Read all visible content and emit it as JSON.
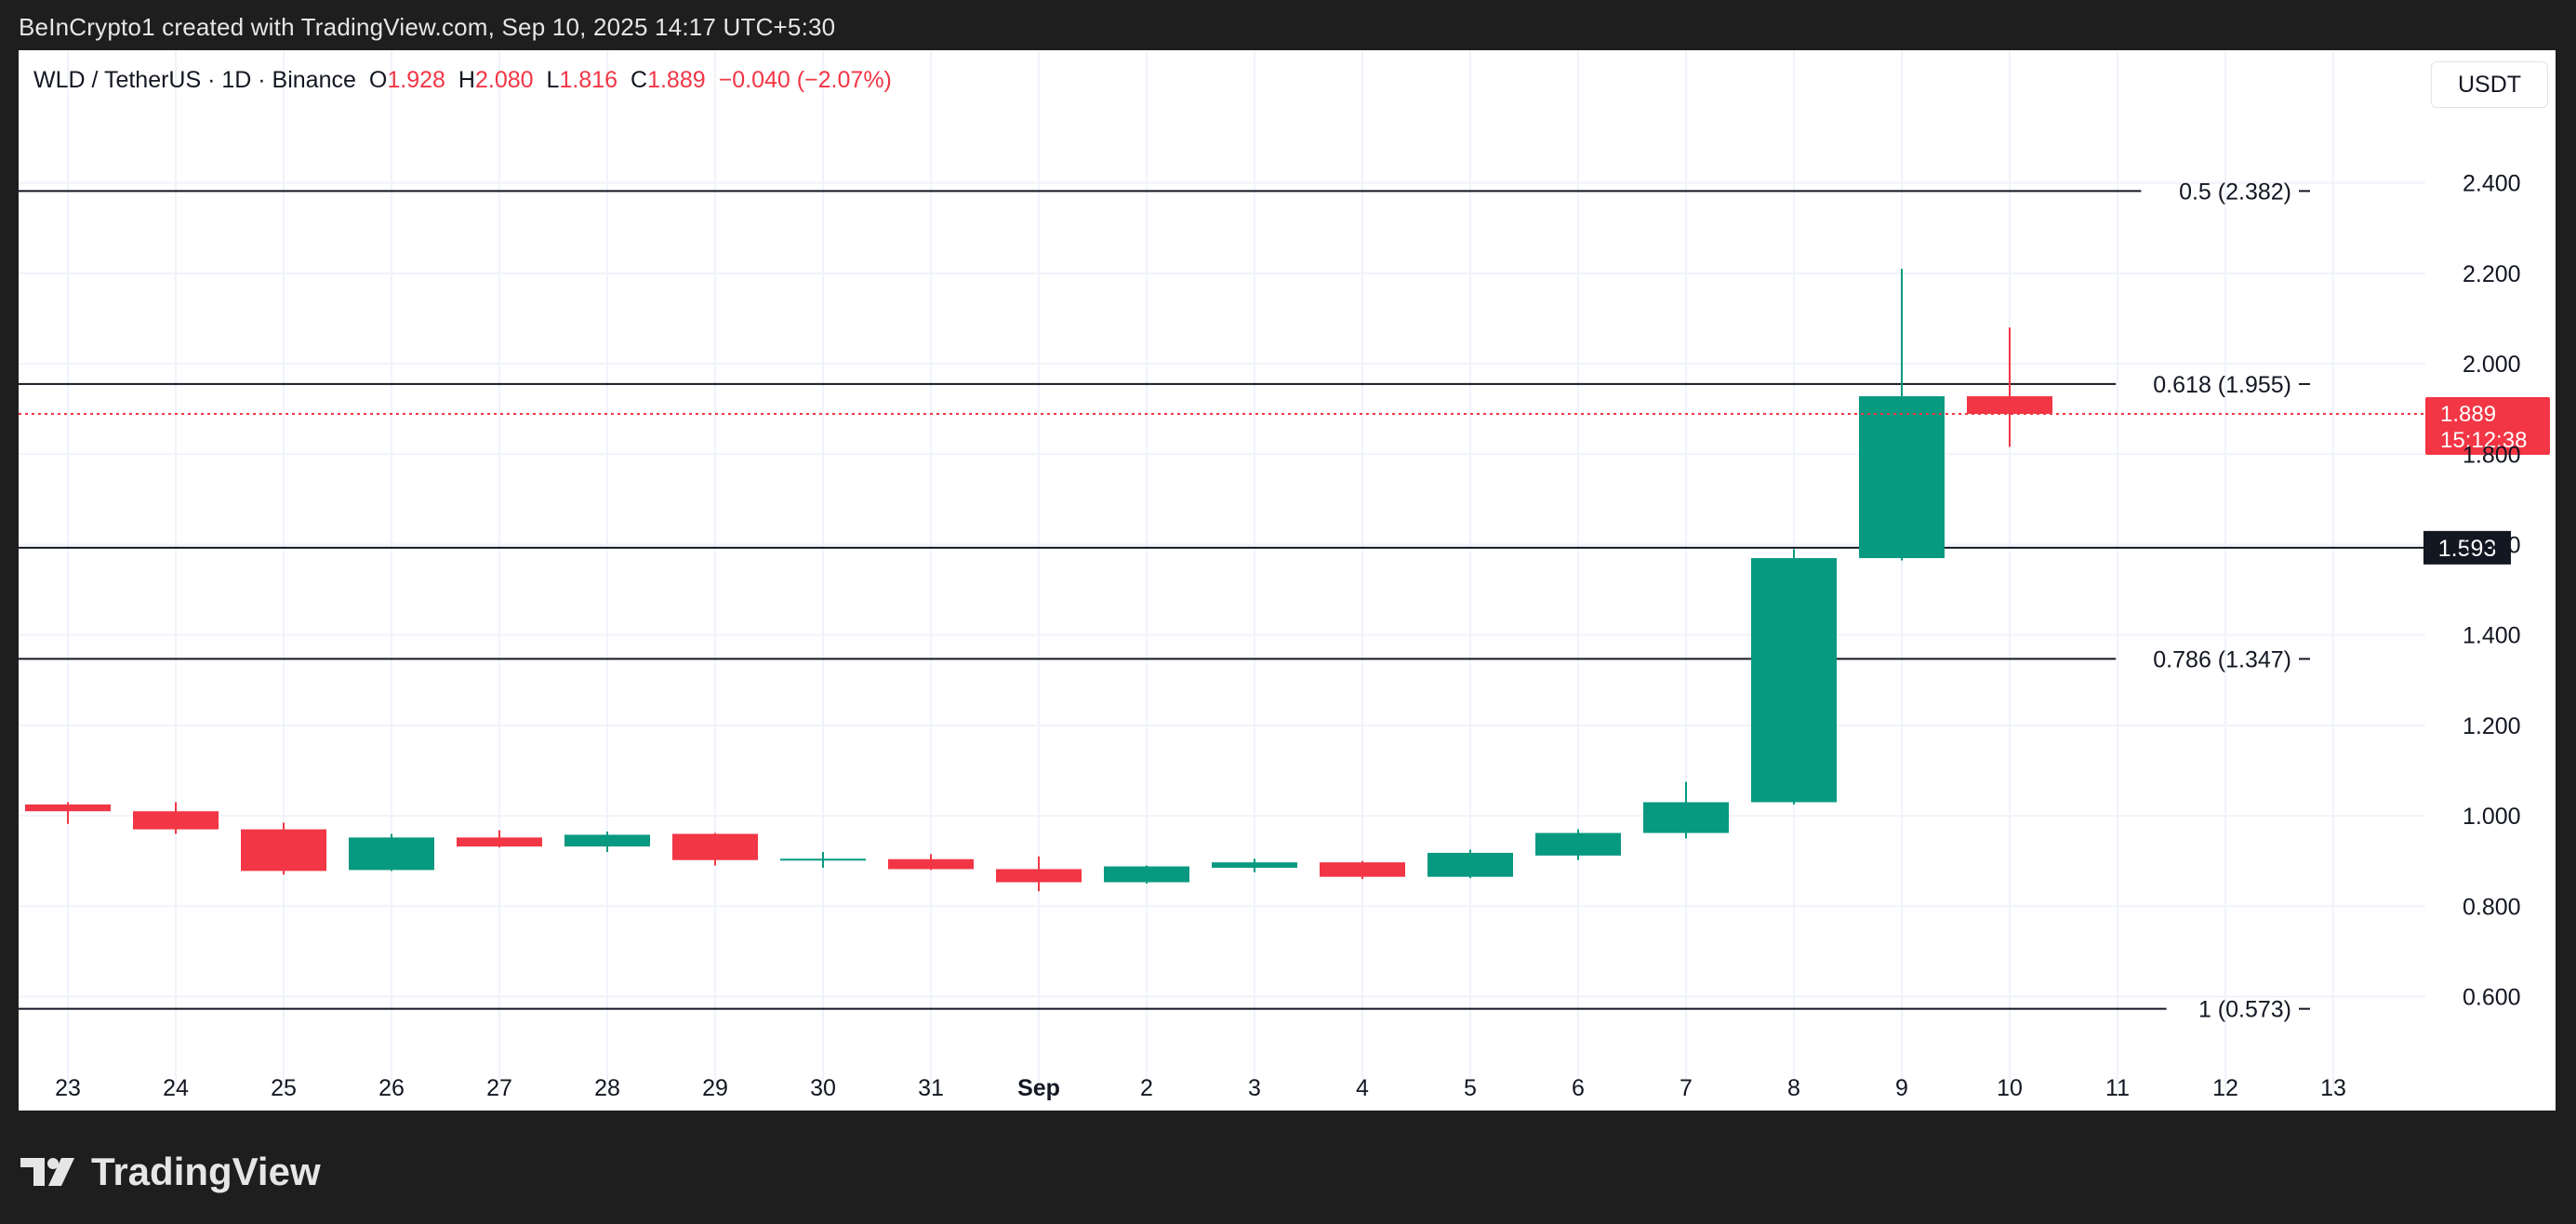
{
  "caption": "BeInCrypto1 created with TradingView.com, Sep 10, 2025 14:17 UTC+5:30",
  "legend": {
    "symbol": "WLD / TetherUS · 1D · Binance",
    "o_label": "O",
    "o_value": "1.928",
    "h_label": "H",
    "h_value": "2.080",
    "l_label": "L",
    "l_value": "1.816",
    "c_label": "C",
    "c_value": "1.889",
    "change": "−0.040 (−2.07%)"
  },
  "currency_button": "USDT",
  "brand": "TradingView",
  "colors": {
    "up": "#089981",
    "down": "#f23645",
    "grid": "#f0f3fa",
    "hline": "#131722",
    "text": "#131722"
  },
  "chart_data": {
    "type": "candlestick",
    "y_range": [
      0.42,
      2.57
    ],
    "y_ticks": [
      "0.600",
      "0.800",
      "1.000",
      "1.200",
      "1.400",
      "1.600",
      "1.800",
      "2.000",
      "2.200",
      "2.400"
    ],
    "x_labels": [
      "23",
      "24",
      "25",
      "26",
      "27",
      "28",
      "29",
      "30",
      "31",
      "Sep",
      "2",
      "3",
      "4",
      "5",
      "6",
      "7",
      "8",
      "9",
      "10",
      "11",
      "12",
      "13"
    ],
    "candles": [
      {
        "o": 1.025,
        "h": 1.03,
        "l": 0.982,
        "c": 1.01
      },
      {
        "o": 1.01,
        "h": 1.03,
        "l": 0.96,
        "c": 0.97
      },
      {
        "o": 0.97,
        "h": 0.985,
        "l": 0.87,
        "c": 0.878
      },
      {
        "o": 0.88,
        "h": 0.96,
        "l": 0.878,
        "c": 0.952
      },
      {
        "o": 0.952,
        "h": 0.968,
        "l": 0.93,
        "c": 0.932
      },
      {
        "o": 0.932,
        "h": 0.965,
        "l": 0.92,
        "c": 0.958
      },
      {
        "o": 0.96,
        "h": 0.962,
        "l": 0.89,
        "c": 0.902
      },
      {
        "o": 0.902,
        "h": 0.92,
        "l": 0.885,
        "c": 0.905
      },
      {
        "o": 0.904,
        "h": 0.915,
        "l": 0.88,
        "c": 0.882
      },
      {
        "o": 0.882,
        "h": 0.91,
        "l": 0.833,
        "c": 0.853
      },
      {
        "o": 0.853,
        "h": 0.89,
        "l": 0.85,
        "c": 0.888
      },
      {
        "o": 0.885,
        "h": 0.905,
        "l": 0.875,
        "c": 0.897
      },
      {
        "o": 0.897,
        "h": 0.9,
        "l": 0.86,
        "c": 0.865
      },
      {
        "o": 0.865,
        "h": 0.925,
        "l": 0.862,
        "c": 0.918
      },
      {
        "o": 0.912,
        "h": 0.97,
        "l": 0.902,
        "c": 0.962
      },
      {
        "o": 0.962,
        "h": 1.075,
        "l": 0.95,
        "c": 1.03
      },
      {
        "o": 1.03,
        "h": 1.59,
        "l": 1.025,
        "c": 1.57
      },
      {
        "o": 1.57,
        "h": 2.21,
        "l": 1.565,
        "c": 1.928
      },
      {
        "o": 1.928,
        "h": 2.08,
        "l": 1.816,
        "c": 1.889
      }
    ],
    "levels": [
      {
        "value": 2.382,
        "label": "0.5 (2.382)"
      },
      {
        "value": 1.955,
        "label": "0.618 (1.955)"
      },
      {
        "value": 1.593,
        "label": "1.593",
        "boxed": true
      },
      {
        "value": 1.347,
        "label": "0.786 (1.347)"
      },
      {
        "value": 0.573,
        "label": "1 (0.573)"
      }
    ],
    "current_price": {
      "value": 1.889,
      "label": "1.889",
      "countdown": "15:12:38"
    }
  }
}
